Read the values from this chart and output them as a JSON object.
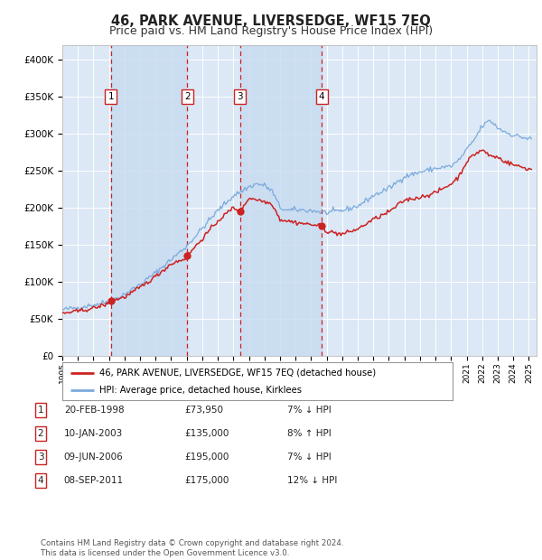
{
  "title": "46, PARK AVENUE, LIVERSEDGE, WF15 7EQ",
  "subtitle": "Price paid vs. HM Land Registry's House Price Index (HPI)",
  "title_fontsize": 10.5,
  "subtitle_fontsize": 9,
  "background_color": "#ffffff",
  "plot_bg_color": "#dce8f5",
  "grid_color": "#ffffff",
  "hpi_line_color": "#7aaadd",
  "price_line_color": "#cc2222",
  "sale_marker_color": "#cc2222",
  "vline_color": "#cc2222",
  "vspan_color": "#c8dcf0",
  "ylim": [
    0,
    420000
  ],
  "yticks": [
    0,
    50000,
    100000,
    150000,
    200000,
    250000,
    300000,
    350000,
    400000
  ],
  "ytick_labels": [
    "£0",
    "£50K",
    "£100K",
    "£150K",
    "£200K",
    "£250K",
    "£300K",
    "£350K",
    "£400K"
  ],
  "xlim_start": 1995,
  "xlim_end": 2025.5,
  "sales": [
    {
      "label": "1",
      "date_num": 1998.13,
      "price": 73950,
      "date_str": "20-FEB-1998"
    },
    {
      "label": "2",
      "date_num": 2003.03,
      "price": 135000,
      "date_str": "10-JAN-2003"
    },
    {
      "label": "3",
      "date_num": 2006.44,
      "price": 195000,
      "date_str": "09-JUN-2006"
    },
    {
      "label": "4",
      "date_num": 2011.68,
      "price": 175000,
      "date_str": "08-SEP-2011"
    }
  ],
  "table_rows": [
    {
      "num": "1",
      "date": "20-FEB-1998",
      "price": "£73,950",
      "hpi": "7% ↓ HPI"
    },
    {
      "num": "2",
      "date": "10-JAN-2003",
      "price": "£135,000",
      "hpi": "8% ↑ HPI"
    },
    {
      "num": "3",
      "date": "09-JUN-2006",
      "price": "£195,000",
      "hpi": "7% ↓ HPI"
    },
    {
      "num": "4",
      "date": "08-SEP-2011",
      "price": "£175,000",
      "hpi": "12% ↓ HPI"
    }
  ],
  "footer": "Contains HM Land Registry data © Crown copyright and database right 2024.\nThis data is licensed under the Open Government Licence v3.0.",
  "legend_line1": "46, PARK AVENUE, LIVERSEDGE, WF15 7EQ (detached house)",
  "legend_line2": "HPI: Average price, detached house, Kirklees"
}
